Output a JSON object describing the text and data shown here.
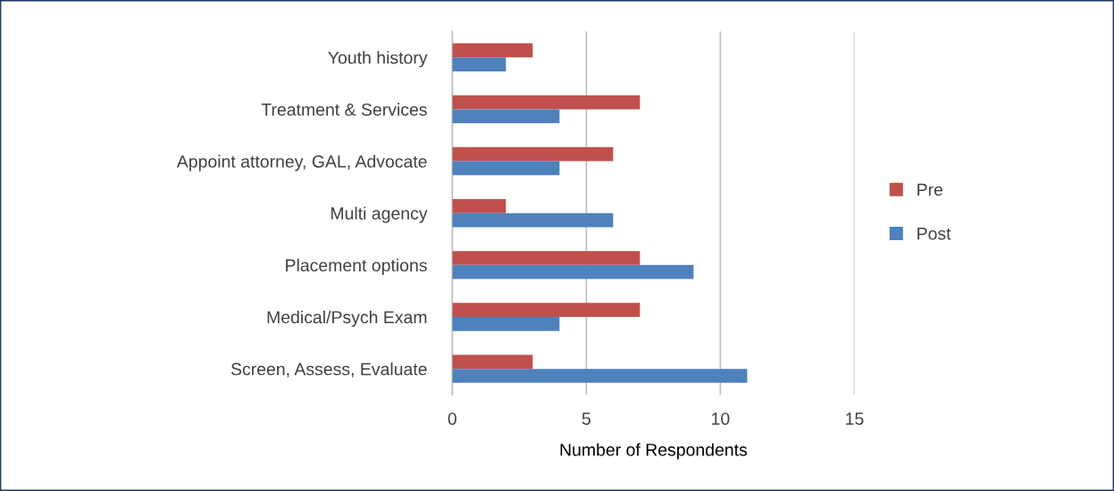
{
  "chart_data": {
    "type": "bar",
    "orientation": "horizontal",
    "xlabel": "Number of Respondents",
    "categories": [
      "Youth history",
      "Treatment & Services",
      "Appoint attorney, GAL, Advocate",
      "Multi agency",
      "Placement options",
      "Medical/Psych Exam",
      "Screen, Assess, Evaluate"
    ],
    "series": [
      {
        "name": "Pre",
        "color": "#c0504d",
        "values": [
          3,
          7,
          6,
          2,
          7,
          7,
          3
        ]
      },
      {
        "name": "Post",
        "color": "#4f81bd",
        "values": [
          2,
          4,
          4,
          6,
          9,
          4,
          11
        ]
      }
    ],
    "xlim": [
      0,
      15
    ],
    "xticks": [
      0,
      5,
      10,
      15
    ],
    "grid": "x",
    "legend": "right"
  }
}
